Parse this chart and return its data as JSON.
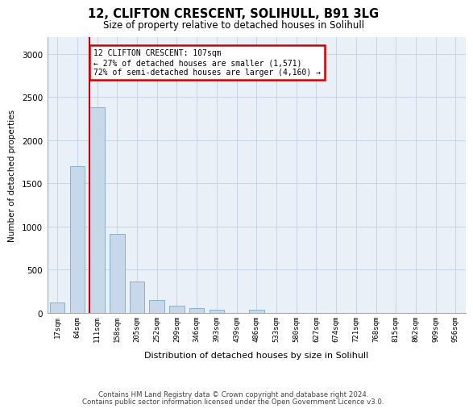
{
  "title_line1": "12, CLIFTON CRESCENT, SOLIHULL, B91 3LG",
  "title_line2": "Size of property relative to detached houses in Solihull",
  "xlabel": "Distribution of detached houses by size in Solihull",
  "ylabel": "Number of detached properties",
  "bar_color": "#c8d8eb",
  "bar_edge_color": "#7aaac8",
  "categories": [
    "17sqm",
    "64sqm",
    "111sqm",
    "158sqm",
    "205sqm",
    "252sqm",
    "299sqm",
    "346sqm",
    "393sqm",
    "439sqm",
    "486sqm",
    "533sqm",
    "580sqm",
    "627sqm",
    "674sqm",
    "721sqm",
    "768sqm",
    "815sqm",
    "862sqm",
    "909sqm",
    "956sqm"
  ],
  "values": [
    120,
    1700,
    2380,
    920,
    360,
    150,
    80,
    55,
    35,
    0,
    35,
    0,
    0,
    0,
    0,
    0,
    0,
    0,
    0,
    0,
    0
  ],
  "ylim": [
    0,
    3200
  ],
  "yticks": [
    0,
    500,
    1000,
    1500,
    2000,
    2500,
    3000
  ],
  "vline_index": 2,
  "annotation_line1": "12 CLIFTON CRESCENT: 107sqm",
  "annotation_line2": "← 27% of detached houses are smaller (1,571)",
  "annotation_line3": "72% of semi-detached houses are larger (4,160) →",
  "annotation_box_facecolor": "#ffffff",
  "annotation_border_color": "#cc0000",
  "vline_color": "#cc0000",
  "footer_line1": "Contains HM Land Registry data © Crown copyright and database right 2024.",
  "footer_line2": "Contains public sector information licensed under the Open Government Licence v3.0.",
  "grid_color": "#c8d4e4",
  "axes_bg_color": "#eaf0f8",
  "fig_bg_color": "#ffffff"
}
